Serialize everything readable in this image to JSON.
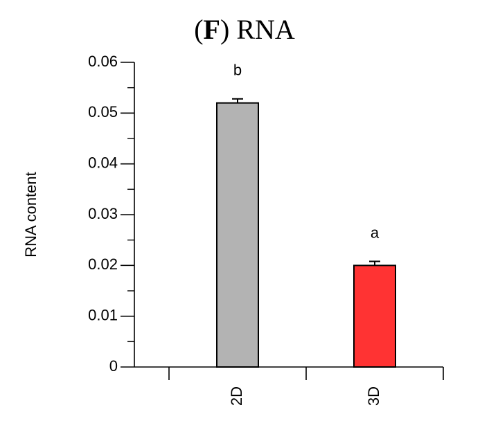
{
  "chart_data": {
    "type": "bar",
    "title": {
      "panel_letter": "F",
      "text": "RNA"
    },
    "ylabel": "RNA content",
    "xlabel": "",
    "categories": [
      "2D",
      "3D"
    ],
    "values": [
      0.052,
      0.02
    ],
    "errors": [
      0.0008,
      0.0008
    ],
    "significance_labels": [
      "b",
      "a"
    ],
    "colors": [
      "#b3b3b3",
      "#ff3333"
    ],
    "ylim": [
      0,
      0.06
    ],
    "yticks": [
      0,
      0.01,
      0.02,
      0.03,
      0.04,
      0.05,
      0.06
    ],
    "ytick_labels": [
      "0",
      "0.01",
      "0.02",
      "0.03",
      "0.04",
      "0.05",
      "0.06"
    ],
    "grid": false,
    "legend": false
  }
}
